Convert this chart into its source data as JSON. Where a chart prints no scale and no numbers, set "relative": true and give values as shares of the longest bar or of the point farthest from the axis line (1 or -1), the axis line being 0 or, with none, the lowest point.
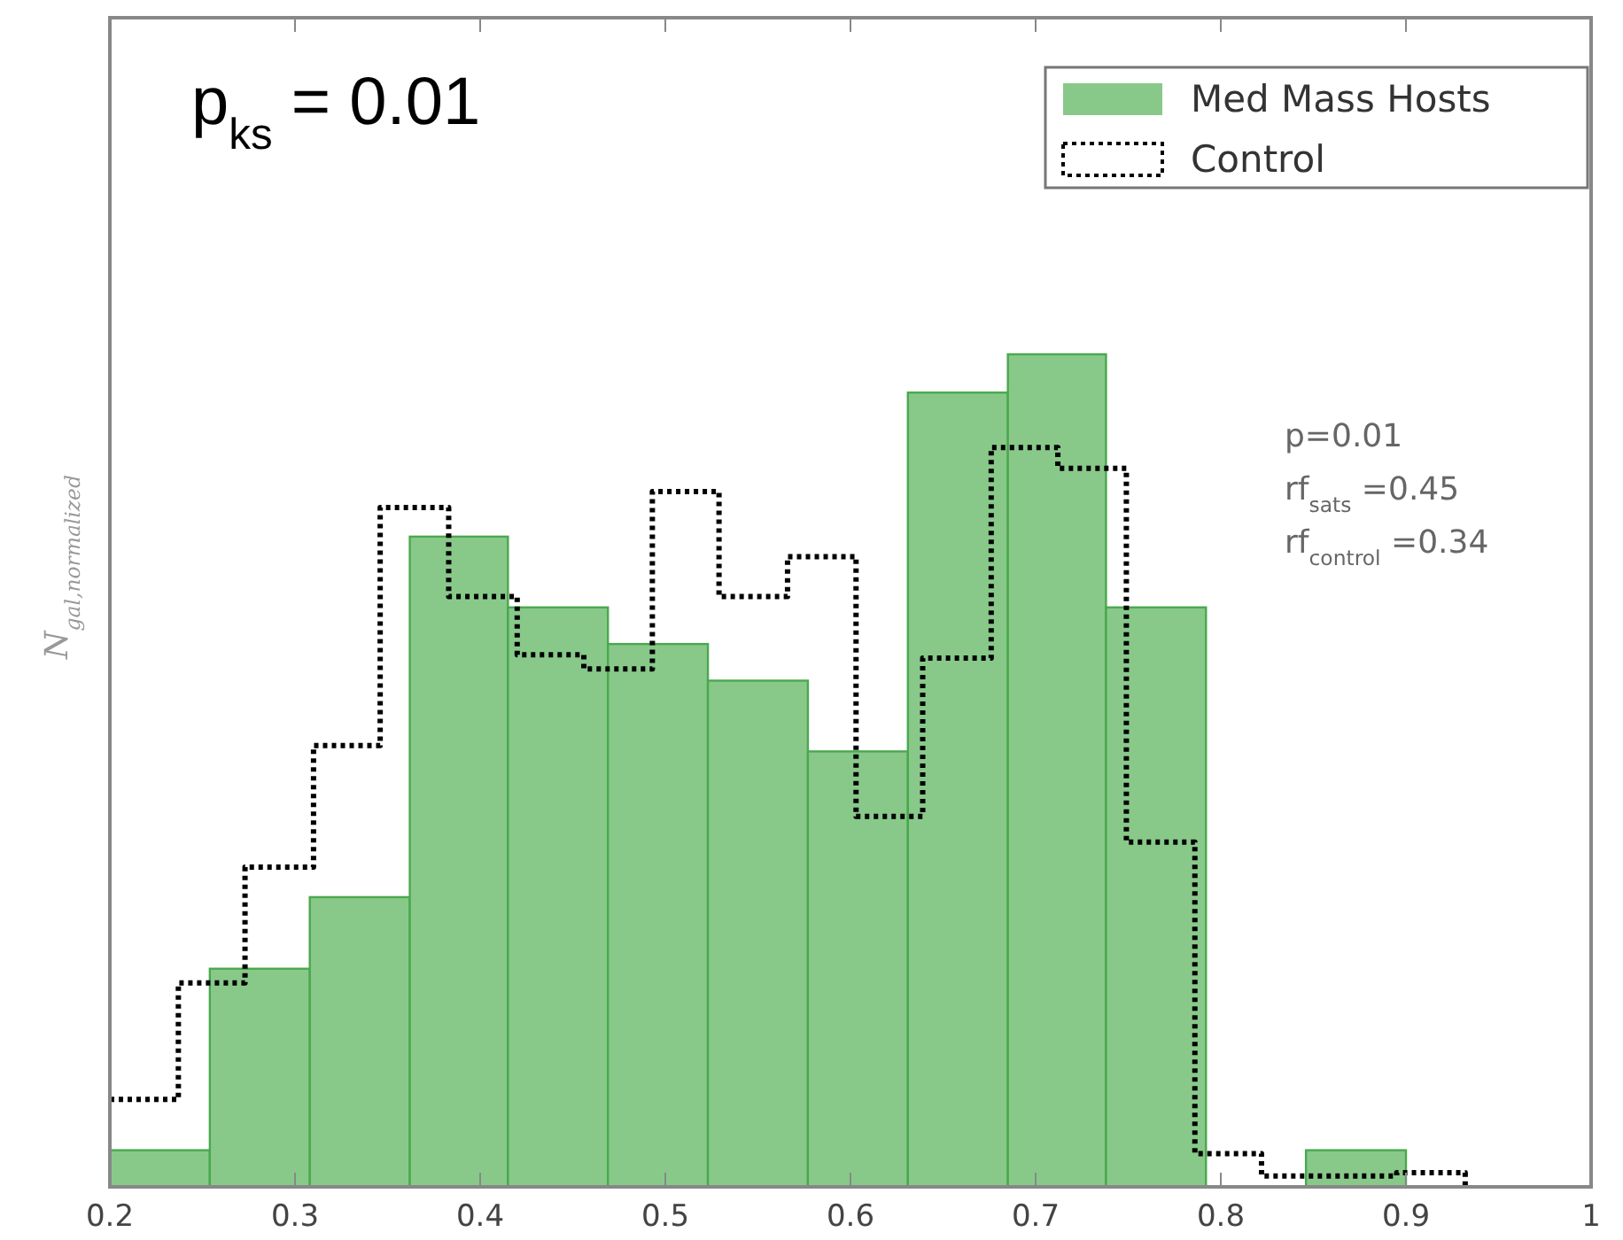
{
  "chart_data": {
    "type": "histogram",
    "relative": true,
    "ylabel": "N$_{gal,normalized}$",
    "xlim": [
      0.2,
      1.0
    ],
    "xticks": [
      0.2,
      0.3,
      0.4,
      0.5,
      0.6,
      0.7,
      0.8,
      0.9,
      1
    ],
    "bins": [
      0.2,
      0.254,
      0.308,
      0.362,
      0.415,
      0.469,
      0.523,
      0.577,
      0.631,
      0.685,
      0.738,
      0.792,
      0.846,
      0.9
    ],
    "series": [
      {
        "name": "Med Mass Hosts",
        "color": "#88c98a",
        "values": [
          0.044,
          0.262,
          0.348,
          0.781,
          0.696,
          0.652,
          0.608,
          0.523,
          0.954,
          1,
          0.696,
          0,
          0.044
        ]
      },
      {
        "name": "Control",
        "type": "step",
        "color": "#000000",
        "line_style": "dotted",
        "x": [
          0.2,
          0.237,
          0.273,
          0.31,
          0.346,
          0.383,
          0.42,
          0.456,
          0.493,
          0.529,
          0.566,
          0.603,
          0.639,
          0.676,
          0.712,
          0.749,
          0.786,
          0.822,
          0.859,
          0.895,
          0.932
        ],
        "values": [
          0.105,
          0.245,
          0.384,
          0.53,
          0.816,
          0.709,
          0.639,
          0.622,
          0.835,
          0.709,
          0.757,
          0.445,
          0.635,
          0.888,
          0.863,
          0.414,
          0.04,
          0.013,
          0.013,
          0.017,
          0
        ]
      }
    ],
    "legend": "top right",
    "grid": false,
    "annotations": [
      "p$_{ks}$ = 0.01",
      "p=0.01",
      "rf$_{sats}$ =0.45",
      "rf$_{control}$ =0.34"
    ]
  }
}
